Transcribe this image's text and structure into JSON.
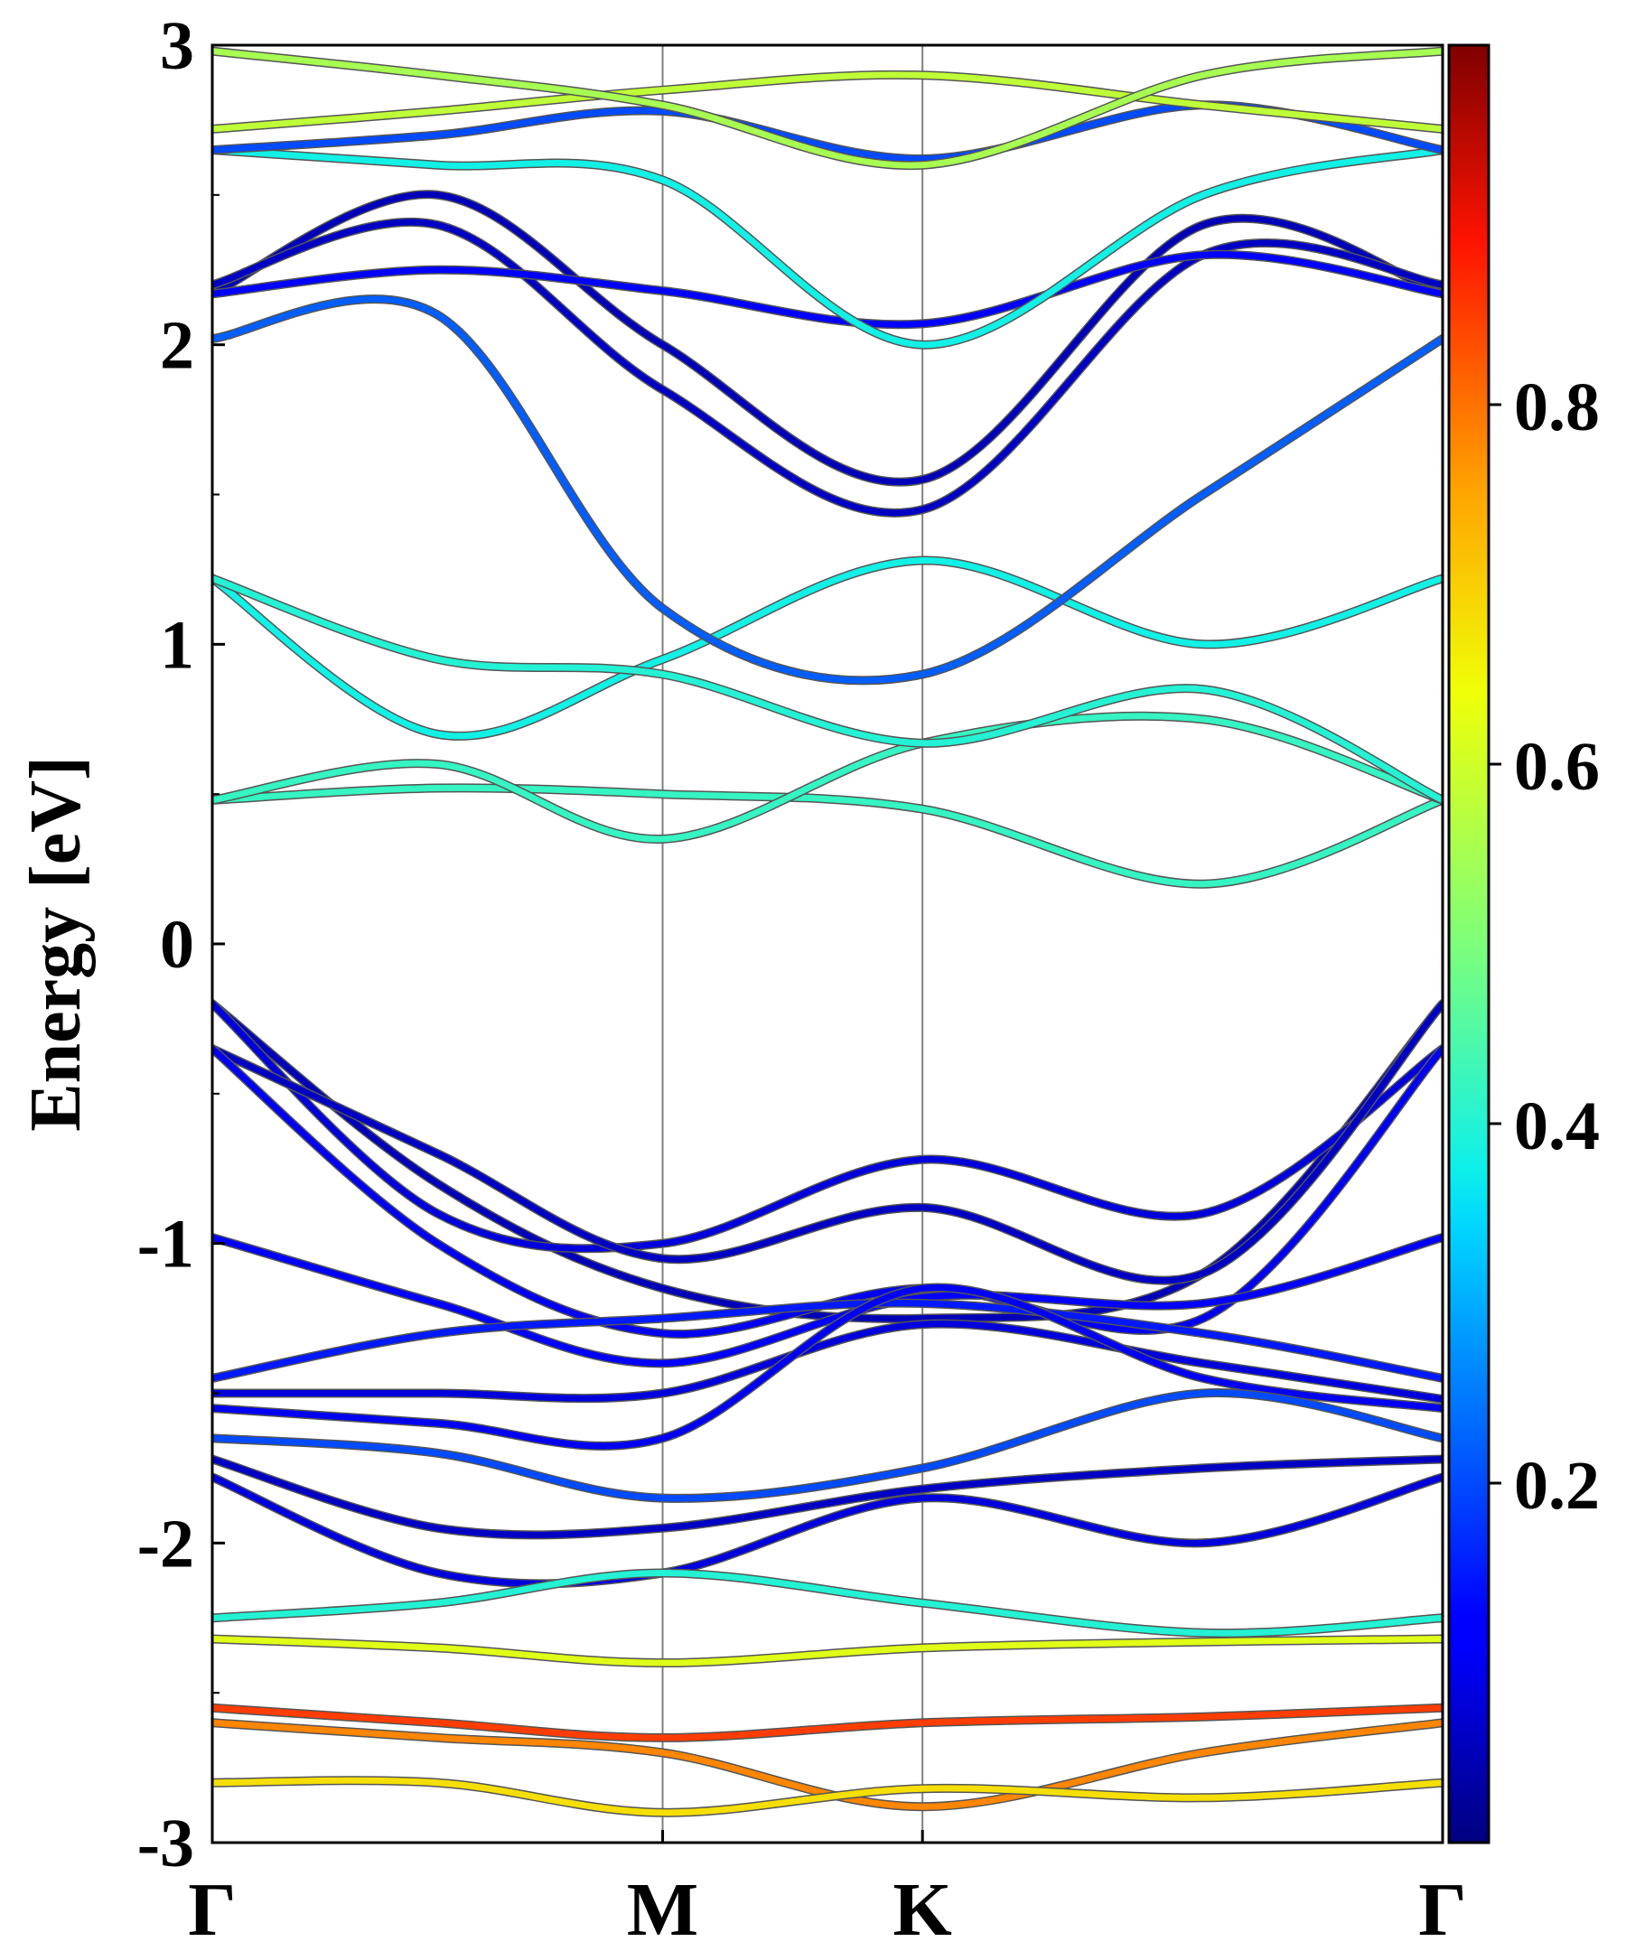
{
  "chart_data": {
    "type": "line",
    "title": "",
    "ylabel": "Energy [eV]",
    "ylim": [
      -3,
      3
    ],
    "yticks": [
      {
        "value": 3,
        "label": "3"
      },
      {
        "value": 2,
        "label": "2"
      },
      {
        "value": 1,
        "label": "1"
      },
      {
        "value": 0,
        "label": "0"
      },
      {
        "value": -1,
        "label": "-1"
      },
      {
        "value": -2,
        "label": "-2"
      },
      {
        "value": -3,
        "label": "-3"
      }
    ],
    "kpath": [
      {
        "label": "Γ",
        "x": 0.0
      },
      {
        "label": "M",
        "x": 1.0
      },
      {
        "label": "K",
        "x": 1.577
      },
      {
        "label": "Γ",
        "x": 2.732
      }
    ],
    "colorbar": {
      "colormap": "jet",
      "range": [
        0.0,
        1.0
      ],
      "ticks": [
        {
          "value": 0.2,
          "label": "0.2"
        },
        {
          "value": 0.4,
          "label": "0.4"
        },
        {
          "value": 0.6,
          "label": "0.6"
        },
        {
          "value": 0.8,
          "label": "0.8"
        }
      ]
    },
    "series": [
      {
        "weight": 0.05,
        "points": [
          [
            0,
            -0.2
          ],
          [
            0.5,
            -0.8
          ],
          [
            1.0,
            -1.15
          ],
          [
            1.577,
            -1.25
          ],
          [
            2.2,
            -1.1
          ],
          [
            2.732,
            -0.2
          ]
        ]
      },
      {
        "weight": 0.08,
        "points": [
          [
            0,
            -0.2
          ],
          [
            0.5,
            -0.9
          ],
          [
            1.0,
            -1.0
          ],
          [
            1.577,
            -0.72
          ],
          [
            2.2,
            -0.9
          ],
          [
            2.732,
            -0.35
          ]
        ]
      },
      {
        "weight": 0.06,
        "points": [
          [
            0,
            -0.35
          ],
          [
            0.5,
            -0.7
          ],
          [
            1.0,
            -1.05
          ],
          [
            1.577,
            -0.88
          ],
          [
            2.2,
            -1.1
          ],
          [
            2.732,
            -0.2
          ]
        ]
      },
      {
        "weight": 0.1,
        "points": [
          [
            0,
            -0.35
          ],
          [
            0.5,
            -1.0
          ],
          [
            1.0,
            -1.3
          ],
          [
            1.577,
            -1.15
          ],
          [
            2.2,
            -1.25
          ],
          [
            2.732,
            -0.35
          ]
        ]
      },
      {
        "weight": 0.12,
        "points": [
          [
            0,
            -0.98
          ],
          [
            0.5,
            -1.2
          ],
          [
            1.0,
            -1.4
          ],
          [
            1.577,
            -1.18
          ],
          [
            2.2,
            -1.2
          ],
          [
            2.732,
            -0.98
          ]
        ]
      },
      {
        "weight": 0.15,
        "points": [
          [
            0,
            -1.45
          ],
          [
            0.5,
            -1.3
          ],
          [
            1.0,
            -1.25
          ],
          [
            1.577,
            -1.2
          ],
          [
            2.2,
            -1.3
          ],
          [
            2.732,
            -1.45
          ]
        ]
      },
      {
        "weight": 0.08,
        "points": [
          [
            0,
            -1.5
          ],
          [
            0.5,
            -1.5
          ],
          [
            1.0,
            -1.5
          ],
          [
            1.577,
            -1.27
          ],
          [
            2.2,
            -1.4
          ],
          [
            2.732,
            -1.52
          ]
        ]
      },
      {
        "weight": 0.1,
        "points": [
          [
            0,
            -1.55
          ],
          [
            0.5,
            -1.6
          ],
          [
            1.0,
            -1.65
          ],
          [
            1.577,
            -1.15
          ],
          [
            2.2,
            -1.45
          ],
          [
            2.732,
            -1.55
          ]
        ]
      },
      {
        "weight": 0.2,
        "points": [
          [
            0,
            -1.65
          ],
          [
            0.5,
            -1.7
          ],
          [
            1.0,
            -1.85
          ],
          [
            1.577,
            -1.75
          ],
          [
            2.2,
            -1.5
          ],
          [
            2.732,
            -1.65
          ]
        ]
      },
      {
        "weight": 0.06,
        "points": [
          [
            0,
            -1.72
          ],
          [
            0.5,
            -1.95
          ],
          [
            1.0,
            -1.95
          ],
          [
            1.577,
            -1.82
          ],
          [
            2.2,
            -1.75
          ],
          [
            2.732,
            -1.72
          ]
        ]
      },
      {
        "weight": 0.08,
        "points": [
          [
            0,
            -1.78
          ],
          [
            0.5,
            -2.1
          ],
          [
            1.0,
            -2.1
          ],
          [
            1.577,
            -1.85
          ],
          [
            2.2,
            -2.0
          ],
          [
            2.732,
            -1.78
          ]
        ]
      },
      {
        "weight": 0.4,
        "points": [
          [
            0,
            -2.25
          ],
          [
            0.5,
            -2.2
          ],
          [
            1.0,
            -2.1
          ],
          [
            1.577,
            -2.2
          ],
          [
            2.2,
            -2.3
          ],
          [
            2.732,
            -2.25
          ]
        ]
      },
      {
        "weight": 0.62,
        "points": [
          [
            0,
            -2.32
          ],
          [
            0.5,
            -2.35
          ],
          [
            1.0,
            -2.4
          ],
          [
            1.577,
            -2.35
          ],
          [
            2.2,
            -2.33
          ],
          [
            2.732,
            -2.32
          ]
        ]
      },
      {
        "weight": 0.85,
        "points": [
          [
            0,
            -2.55
          ],
          [
            0.5,
            -2.6
          ],
          [
            1.0,
            -2.65
          ],
          [
            1.577,
            -2.6
          ],
          [
            2.2,
            -2.58
          ],
          [
            2.732,
            -2.55
          ]
        ]
      },
      {
        "weight": 0.78,
        "points": [
          [
            0,
            -2.6
          ],
          [
            0.5,
            -2.65
          ],
          [
            1.0,
            -2.7
          ],
          [
            1.577,
            -2.88
          ],
          [
            2.2,
            -2.7
          ],
          [
            2.732,
            -2.6
          ]
        ]
      },
      {
        "weight": 0.68,
        "points": [
          [
            0,
            -2.8
          ],
          [
            0.5,
            -2.8
          ],
          [
            1.0,
            -2.9
          ],
          [
            1.577,
            -2.82
          ],
          [
            2.2,
            -2.85
          ],
          [
            2.732,
            -2.8
          ]
        ]
      },
      {
        "weight": 0.42,
        "points": [
          [
            0,
            0.48
          ],
          [
            0.5,
            0.52
          ],
          [
            1.0,
            0.5
          ],
          [
            1.577,
            0.45
          ],
          [
            2.2,
            0.2
          ],
          [
            2.732,
            0.48
          ]
        ]
      },
      {
        "weight": 0.42,
        "points": [
          [
            0,
            0.48
          ],
          [
            0.5,
            0.6
          ],
          [
            1.0,
            0.35
          ],
          [
            1.577,
            0.67
          ],
          [
            2.2,
            0.75
          ],
          [
            2.732,
            0.48
          ]
        ]
      },
      {
        "weight": 0.38,
        "points": [
          [
            0,
            1.22
          ],
          [
            0.5,
            0.7
          ],
          [
            1.0,
            0.95
          ],
          [
            1.577,
            1.28
          ],
          [
            2.2,
            1.0
          ],
          [
            2.732,
            1.22
          ]
        ]
      },
      {
        "weight": 0.4,
        "points": [
          [
            0,
            1.22
          ],
          [
            0.5,
            0.95
          ],
          [
            1.0,
            0.9
          ],
          [
            1.577,
            0.67
          ],
          [
            2.2,
            0.85
          ],
          [
            2.732,
            0.48
          ]
        ]
      },
      {
        "weight": 0.22,
        "points": [
          [
            0,
            2.02
          ],
          [
            0.5,
            2.1
          ],
          [
            1.0,
            1.12
          ],
          [
            1.577,
            0.9
          ],
          [
            2.2,
            1.5
          ],
          [
            2.732,
            2.02
          ]
        ]
      },
      {
        "weight": 0.05,
        "points": [
          [
            0,
            2.17
          ],
          [
            0.5,
            2.5
          ],
          [
            1.0,
            2.0
          ],
          [
            1.577,
            1.55
          ],
          [
            2.2,
            2.4
          ],
          [
            2.732,
            2.17
          ]
        ]
      },
      {
        "weight": 0.06,
        "points": [
          [
            0,
            2.2
          ],
          [
            0.5,
            2.4
          ],
          [
            1.0,
            1.85
          ],
          [
            1.577,
            1.45
          ],
          [
            2.2,
            2.3
          ],
          [
            2.732,
            2.2
          ]
        ]
      },
      {
        "weight": 0.12,
        "points": [
          [
            0,
            2.17
          ],
          [
            0.5,
            2.25
          ],
          [
            1.0,
            2.18
          ],
          [
            1.577,
            2.07
          ],
          [
            2.2,
            2.3
          ],
          [
            2.732,
            2.17
          ]
        ]
      },
      {
        "weight": 0.38,
        "points": [
          [
            0,
            2.65
          ],
          [
            0.5,
            2.6
          ],
          [
            1.0,
            2.55
          ],
          [
            1.577,
            2.0
          ],
          [
            2.2,
            2.5
          ],
          [
            2.732,
            2.65
          ]
        ]
      },
      {
        "weight": 0.2,
        "points": [
          [
            0,
            2.65
          ],
          [
            0.5,
            2.7
          ],
          [
            1.0,
            2.78
          ],
          [
            1.577,
            2.62
          ],
          [
            2.2,
            2.8
          ],
          [
            2.732,
            2.65
          ]
        ]
      },
      {
        "weight": 0.58,
        "points": [
          [
            0,
            2.72
          ],
          [
            0.5,
            2.78
          ],
          [
            1.0,
            2.85
          ],
          [
            1.577,
            2.9
          ],
          [
            2.2,
            2.8
          ],
          [
            2.732,
            2.72
          ]
        ]
      },
      {
        "weight": 0.55,
        "points": [
          [
            0,
            2.98
          ],
          [
            0.5,
            2.9
          ],
          [
            1.0,
            2.8
          ],
          [
            1.577,
            2.6
          ],
          [
            2.2,
            2.9
          ],
          [
            2.732,
            2.98
          ]
        ]
      }
    ]
  }
}
